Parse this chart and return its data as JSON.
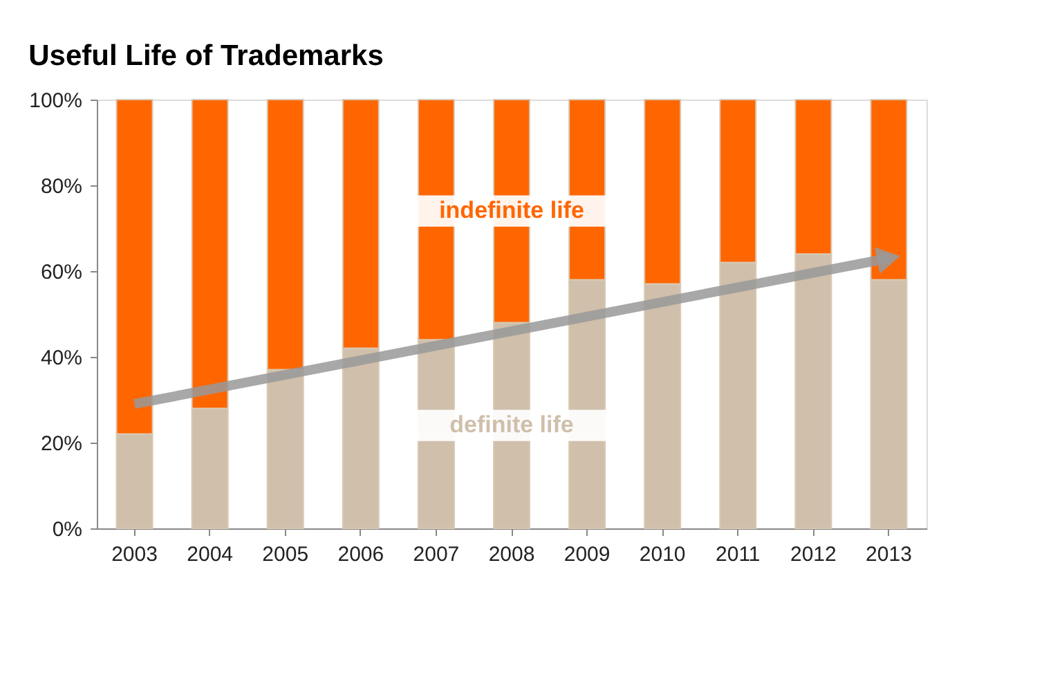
{
  "chart_data": {
    "type": "bar",
    "title": "Useful Life of Trademarks",
    "stacked": true,
    "grid": false,
    "categories": [
      "2003",
      "2004",
      "2005",
      "2006",
      "2007",
      "2008",
      "2009",
      "2010",
      "2011",
      "2012",
      "2013"
    ],
    "ylim": [
      0,
      100
    ],
    "yticks": [
      {
        "value": 0,
        "label": "0%"
      },
      {
        "value": 20,
        "label": "20%"
      },
      {
        "value": 40,
        "label": "40%"
      },
      {
        "value": 60,
        "label": "60%"
      },
      {
        "value": 80,
        "label": "80%"
      },
      {
        "value": 100,
        "label": "100%"
      }
    ],
    "series": [
      {
        "name": "definite life",
        "color": "#cfbfab",
        "values": [
          22,
          28,
          37,
          42,
          44,
          48,
          58,
          57,
          62,
          64,
          58
        ]
      },
      {
        "name": "indefinite life",
        "color": "#ff6600",
        "values": [
          78,
          72,
          63,
          58,
          56,
          52,
          42,
          43,
          38,
          36,
          42
        ]
      },
      {
        "type": "line",
        "color": "#999999",
        "values": [
          29,
          null,
          null,
          null,
          null,
          null,
          null,
          null,
          null,
          null,
          63
        ]
      }
    ]
  }
}
